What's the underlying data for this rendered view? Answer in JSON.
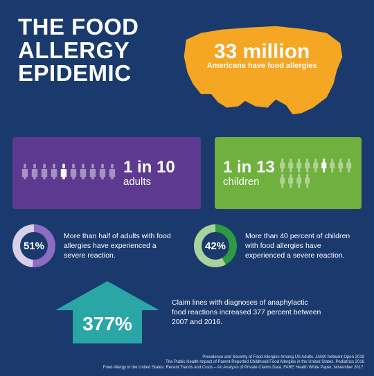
{
  "colors": {
    "background": "#1a3a6e",
    "map": "#f5a623",
    "purple": "#5d3a8f",
    "green": "#6fb03e",
    "donut_purple_fill": "#8d6cc2",
    "donut_purple_track": "#d8cfe8",
    "donut_green_fill": "#2d9a3f",
    "donut_green_track": "#a9d39a",
    "arrow": "#2aa6a6"
  },
  "title": "THE FOOD ALLERGY EPIDEMIC",
  "map": {
    "stat": "33 million",
    "subtitle": "Americans have food allergies"
  },
  "adults": {
    "total": 10,
    "highlighted_index": 4,
    "stat": "1 in 10",
    "unit": "adults"
  },
  "children": {
    "total": 13,
    "highlighted_index": 5,
    "stat": "1 in 13",
    "unit": "children"
  },
  "donuts": {
    "adult": {
      "percent": 51,
      "label": "51%",
      "text": "More than half of adults with food allergies have experienced a severe reaction."
    },
    "child": {
      "percent": 42,
      "label": "42%",
      "text": "More than 40 percent of children with food allergies have experienced a severe reaction."
    }
  },
  "arrow": {
    "label": "377%",
    "text": "Claim lines with diagnoses of anaphylactic food reactions increased 377 percent between 2007 and 2016."
  },
  "sources": [
    "Prevalence and Severity of Food Allergies Among US Adults. JAMA Network Open 2019",
    "The Public Health Impact of Parent-Reported Childhood Food Allergies in the United States. Pediatrics 2018",
    "Food Allergy in the United States: Recent Trends and Costs – An Analysis of Private Claims Data. FARE Health White Paper, November 2017."
  ]
}
